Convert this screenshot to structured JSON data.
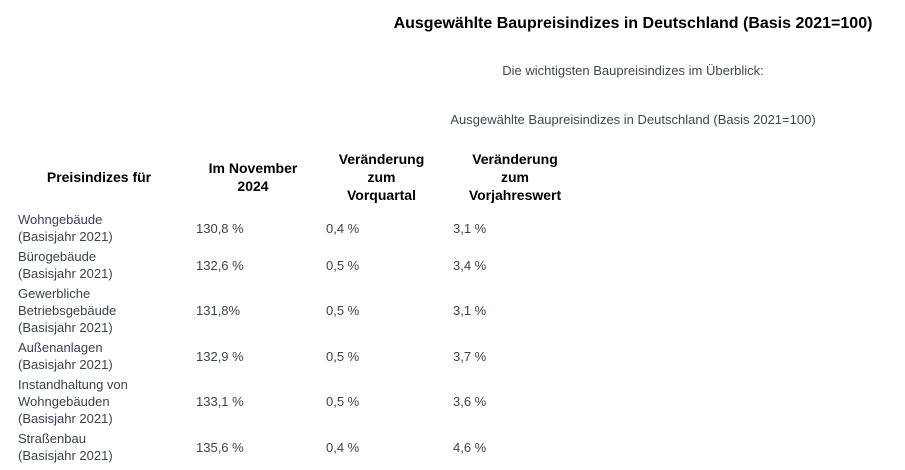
{
  "page": {
    "title": "Ausgewählte Baupreisindizes in Deutschland (Basis 2021=100)",
    "subtitle": "Die wichtigsten Baupreisindizes im Überblick:",
    "table_caption": "Ausgewählte Baupreisindizes in Deutschland (Basis 2021=100)"
  },
  "colors": {
    "title_text": "#000000",
    "body_text": "#39434d",
    "background": "#ffffff"
  },
  "table": {
    "headers": [
      "Preisindizes für",
      "Im November\n2024",
      "Veränderung\nzum\nVorquartal",
      "Veränderung\nzum\nVorjahreswert"
    ],
    "rows": [
      {
        "name": "Wohngebäude\n(Basisjahr 2021)",
        "november": "130,8 %",
        "vorquartal": "0,4 %",
        "vorjahreswert": "3,1 %"
      },
      {
        "name": "Bürogebäude\n(Basisjahr 2021)",
        "november": "132,6 %",
        "vorquartal": "0,5 %",
        "vorjahreswert": "3,4 %"
      },
      {
        "name": "Gewerbliche\nBetriebsgebäude\n(Basisjahr 2021)",
        "november": "131,8%",
        "vorquartal": "0,5 %",
        "vorjahreswert": "3,1 %"
      },
      {
        "name": "Außenanlagen\n(Basisjahr 2021)",
        "november": "132,9 %",
        "vorquartal": "0,5 %",
        "vorjahreswert": "3,7 %"
      },
      {
        "name": "Instandhaltung von\nWohngebäuden\n(Basisjahr 2021)",
        "november": "133,1 %",
        "vorquartal": "0,5 %",
        "vorjahreswert": "3,6 %"
      },
      {
        "name": "Straßenbau\n(Basisjahr 2021)",
        "november": "135,6 %",
        "vorquartal": "0,4 %",
        "vorjahreswert": "4,6 %"
      }
    ]
  }
}
